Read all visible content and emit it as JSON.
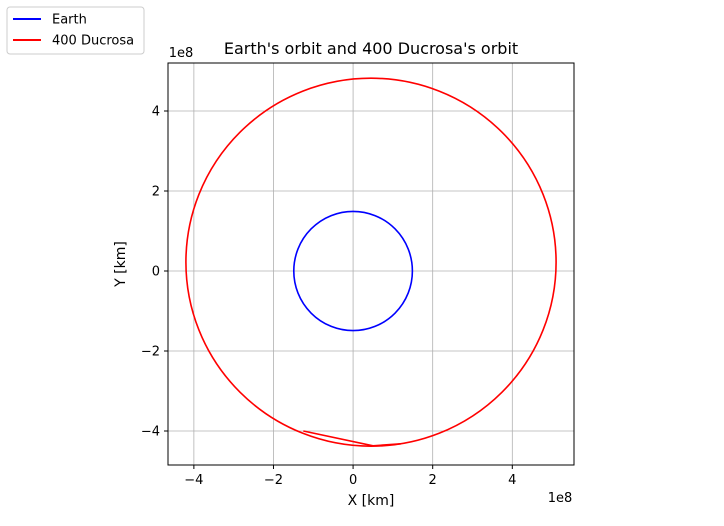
{
  "chart_data": {
    "type": "line",
    "title": "Earth's orbit and 400 Ducrosa's orbit",
    "xlabel": "X [km]",
    "ylabel": "Y [km]",
    "x_offset_label": "1e8",
    "y_offset_label": "1e8",
    "xlim": [
      -4.65,
      5.55
    ],
    "ylim": [
      -4.85,
      5.2
    ],
    "x_ticks": [
      {
        "value": -4,
        "label": "−4"
      },
      {
        "value": -2,
        "label": "−2"
      },
      {
        "value": 0,
        "label": "0"
      },
      {
        "value": 2,
        "label": "2"
      },
      {
        "value": 4,
        "label": "4"
      }
    ],
    "y_ticks": [
      {
        "value": -4,
        "label": "−4"
      },
      {
        "value": -2,
        "label": "−2"
      },
      {
        "value": 0,
        "label": "0"
      },
      {
        "value": 2,
        "label": "2"
      },
      {
        "value": 4,
        "label": "4"
      }
    ],
    "grid": true,
    "legend_position": "outside-top-left",
    "series": [
      {
        "name": "Earth",
        "color": "#0000ff",
        "shape": "ellipse",
        "center": [
          0.0,
          0.0
        ],
        "semi_axis_x": 1.49,
        "semi_axis_y": 1.49
      },
      {
        "name": "400 Ducrosa",
        "color": "#ff0000",
        "shape": "ellipse",
        "center": [
          0.45,
          0.22
        ],
        "semi_axis_x": 4.65,
        "semi_axis_y": 4.6
      }
    ],
    "annotation_segment": {
      "series": "400 Ducrosa",
      "color": "#ff0000",
      "points": [
        [
          -1.25,
          -4.0
        ],
        [
          0.5,
          -4.37
        ],
        [
          1.2,
          -4.32
        ]
      ]
    }
  }
}
